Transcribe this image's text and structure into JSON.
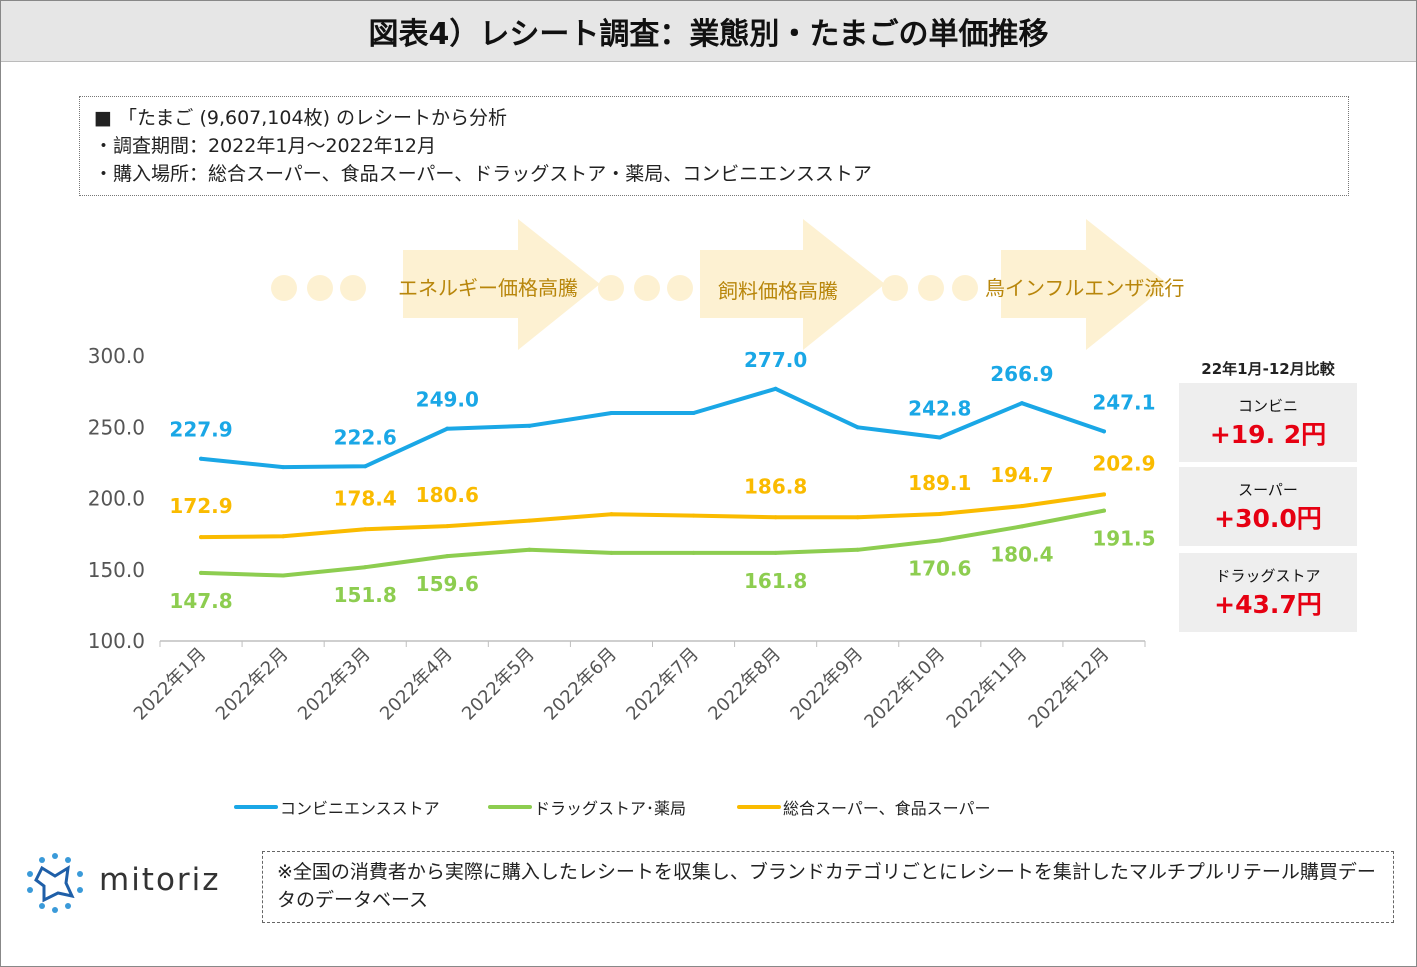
{
  "title": "図表4）レシート調査：業態別・たまごの単価推移",
  "info": {
    "line1": "■ 「たまご (9,607,104枚) のレシートから分析",
    "line2": "・調査期間：2022年1月～2022年12月",
    "line3": "・購入場所：総合スーパー、食品スーパー、ドラッグストア・薬局、コンビニエンスストア"
  },
  "badges": [
    "エネルギー価格高騰",
    "飼料価格高騰",
    "鳥インフルエンザ流行"
  ],
  "comparison": {
    "title": "22年1月-12月比較",
    "items": [
      {
        "label": "コンビニ",
        "value": "+19. 2円"
      },
      {
        "label": "スーパー",
        "value": "+30.0円"
      },
      {
        "label": "ドラッグストア",
        "value": "+43.7円"
      }
    ]
  },
  "legend": {
    "conveni": "コンビニエンスストア",
    "drug": "ドラッグストア･薬局",
    "super": "総合スーパー、食品スーパー"
  },
  "footer": {
    "logo": "mitoriz",
    "note": "※全国の消費者から実際に購入したレシートを収集し、ブランドカテゴリごとにレシートを集計したマルチプルリテール購買データのデータベース"
  },
  "colors": {
    "conveni": "#1aa7e6",
    "drug": "#8dcd50",
    "super": "#fabb00",
    "accent": "#e60012",
    "badge_bg": "#fdf1d2"
  },
  "chart_data": {
    "type": "line",
    "categories": [
      "2022年1月",
      "2022年2月",
      "2022年3月",
      "2022年4月",
      "2022年5月",
      "2022年6月",
      "2022年7月",
      "2022年8月",
      "2022年9月",
      "2022年10月",
      "2022年11月",
      "2022年12月"
    ],
    "ylim": [
      100,
      300
    ],
    "yticks": [
      "300.0",
      "250.0",
      "200.0",
      "150.0",
      "100.0"
    ],
    "series": [
      {
        "name": "コンビニエンスストア",
        "key": "conveni",
        "values": [
          227.9,
          222.0,
          222.6,
          249.0,
          251.0,
          260.0,
          260.0,
          277.0,
          250.0,
          242.8,
          266.9,
          247.1
        ],
        "labels": {
          "0": "227.9",
          "2": "222.6",
          "3": "249.0",
          "7": "277.0",
          "9": "242.8",
          "10": "266.9",
          "11": "247.1"
        }
      },
      {
        "name": "総合スーパー、食品スーパー",
        "key": "super",
        "values": [
          172.9,
          173.5,
          178.4,
          180.6,
          184.5,
          189.0,
          188.0,
          186.8,
          186.8,
          189.1,
          194.7,
          202.9
        ],
        "labels": {
          "0": "172.9",
          "2": "178.4",
          "3": "180.6",
          "7": "186.8",
          "9": "189.1",
          "10": "194.7",
          "11": "202.9"
        }
      },
      {
        "name": "ドラッグストア･薬局",
        "key": "drug",
        "values": [
          147.8,
          146.0,
          151.8,
          159.6,
          164.0,
          161.8,
          161.8,
          161.8,
          164.0,
          170.6,
          180.4,
          191.5
        ],
        "labels": {
          "0": "147.8",
          "2": "151.8",
          "3": "159.6",
          "7": "161.8",
          "9": "170.6",
          "10": "180.4",
          "11": "191.5"
        }
      }
    ]
  }
}
